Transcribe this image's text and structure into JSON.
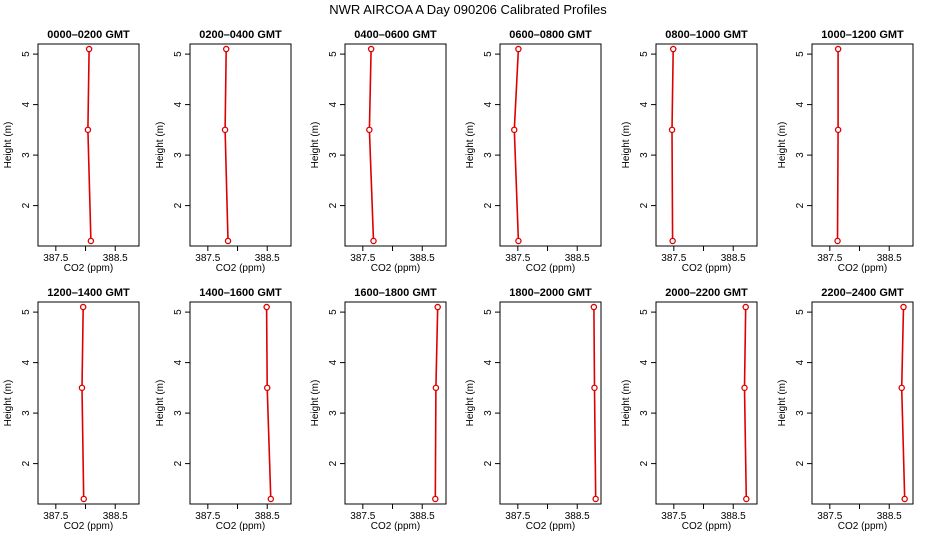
{
  "title": "NWR AIRCOA A  Day 090206  Calibrated Profiles",
  "chart_data": [
    {
      "type": "line",
      "title": "0000–0200 GMT",
      "xlabel": "CO2 (ppm)",
      "ylabel": "Height (m)",
      "x_ticks": [
        "387.5",
        "388.5"
      ],
      "y_ticks": [
        "2",
        "3",
        "4",
        "5"
      ],
      "xlim": [
        387.2,
        388.9
      ],
      "ylim": [
        1.2,
        5.2
      ],
      "points": [
        {
          "x": 388.06,
          "y": 5.1
        },
        {
          "x": 388.04,
          "y": 3.5
        },
        {
          "x": 388.09,
          "y": 1.3
        }
      ],
      "color": "#dd0000"
    },
    {
      "type": "line",
      "title": "0200–0400 GMT",
      "xlabel": "CO2 (ppm)",
      "ylabel": "Height (m)",
      "x_ticks": [
        "387.5",
        "388.5"
      ],
      "y_ticks": [
        "2",
        "3",
        "4",
        "5"
      ],
      "xlim": [
        387.2,
        388.9
      ],
      "ylim": [
        1.2,
        5.2
      ],
      "points": [
        {
          "x": 387.81,
          "y": 5.1
        },
        {
          "x": 387.79,
          "y": 3.5
        },
        {
          "x": 387.84,
          "y": 1.3
        }
      ],
      "color": "#dd0000"
    },
    {
      "type": "line",
      "title": "0400–0600 GMT",
      "xlabel": "CO2 (ppm)",
      "ylabel": "Height (m)",
      "x_ticks": [
        "387.5",
        "388.5"
      ],
      "y_ticks": [
        "2",
        "3",
        "4",
        "5"
      ],
      "xlim": [
        387.2,
        388.9
      ],
      "ylim": [
        1.2,
        5.2
      ],
      "points": [
        {
          "x": 387.64,
          "y": 5.1
        },
        {
          "x": 387.61,
          "y": 3.5
        },
        {
          "x": 387.68,
          "y": 1.3
        }
      ],
      "color": "#dd0000"
    },
    {
      "type": "line",
      "title": "0600–0800 GMT",
      "xlabel": "CO2 (ppm)",
      "ylabel": "Height (m)",
      "x_ticks": [
        "387.5",
        "388.5"
      ],
      "y_ticks": [
        "2",
        "3",
        "4",
        "5"
      ],
      "xlim": [
        387.2,
        388.9
      ],
      "ylim": [
        1.2,
        5.2
      ],
      "points": [
        {
          "x": 387.51,
          "y": 5.1
        },
        {
          "x": 387.44,
          "y": 3.5
        },
        {
          "x": 387.51,
          "y": 1.3
        }
      ],
      "color": "#dd0000"
    },
    {
      "type": "line",
      "title": "0800–1000 GMT",
      "xlabel": "CO2 (ppm)",
      "ylabel": "Height (m)",
      "x_ticks": [
        "387.5",
        "388.5"
      ],
      "y_ticks": [
        "2",
        "3",
        "4",
        "5"
      ],
      "xlim": [
        387.2,
        388.9
      ],
      "ylim": [
        1.2,
        5.2
      ],
      "points": [
        {
          "x": 387.49,
          "y": 5.1
        },
        {
          "x": 387.47,
          "y": 3.5
        },
        {
          "x": 387.48,
          "y": 1.3
        }
      ],
      "color": "#dd0000"
    },
    {
      "type": "line",
      "title": "1000–1200 GMT",
      "xlabel": "CO2 (ppm)",
      "ylabel": "Height (m)",
      "x_ticks": [
        "387.5",
        "388.5"
      ],
      "y_ticks": [
        "2",
        "3",
        "4",
        "5"
      ],
      "xlim": [
        387.2,
        388.9
      ],
      "ylim": [
        1.2,
        5.2
      ],
      "points": [
        {
          "x": 387.64,
          "y": 5.1
        },
        {
          "x": 387.64,
          "y": 3.5
        },
        {
          "x": 387.63,
          "y": 1.3
        }
      ],
      "color": "#dd0000"
    },
    {
      "type": "line",
      "title": "1200–1400 GMT",
      "xlabel": "CO2 (ppm)",
      "ylabel": "Height (m)",
      "x_ticks": [
        "387.5",
        "388.5"
      ],
      "y_ticks": [
        "2",
        "3",
        "4",
        "5"
      ],
      "xlim": [
        387.2,
        388.9
      ],
      "ylim": [
        1.2,
        5.2
      ],
      "points": [
        {
          "x": 387.96,
          "y": 5.1
        },
        {
          "x": 387.94,
          "y": 3.5
        },
        {
          "x": 387.97,
          "y": 1.3
        }
      ],
      "color": "#dd0000"
    },
    {
      "type": "line",
      "title": "1400–1600 GMT",
      "xlabel": "CO2 (ppm)",
      "ylabel": "Height (m)",
      "x_ticks": [
        "387.5",
        "388.5"
      ],
      "y_ticks": [
        "2",
        "3",
        "4",
        "5"
      ],
      "xlim": [
        387.2,
        388.9
      ],
      "ylim": [
        1.2,
        5.2
      ],
      "points": [
        {
          "x": 388.49,
          "y": 5.1
        },
        {
          "x": 388.5,
          "y": 3.5
        },
        {
          "x": 388.56,
          "y": 1.3
        }
      ],
      "color": "#dd0000"
    },
    {
      "type": "line",
      "title": "1600–1800 GMT",
      "xlabel": "CO2 (ppm)",
      "ylabel": "Height (m)",
      "x_ticks": [
        "387.5",
        "388.5"
      ],
      "y_ticks": [
        "2",
        "3",
        "4",
        "5"
      ],
      "xlim": [
        387.2,
        388.9
      ],
      "ylim": [
        1.2,
        5.2
      ],
      "points": [
        {
          "x": 388.76,
          "y": 5.1
        },
        {
          "x": 388.73,
          "y": 3.5
        },
        {
          "x": 388.72,
          "y": 1.3
        }
      ],
      "color": "#dd0000"
    },
    {
      "type": "line",
      "title": "1800–2000 GMT",
      "xlabel": "CO2 (ppm)",
      "ylabel": "Height (m)",
      "x_ticks": [
        "387.5",
        "388.5"
      ],
      "y_ticks": [
        "2",
        "3",
        "4",
        "5"
      ],
      "xlim": [
        387.2,
        388.9
      ],
      "ylim": [
        1.2,
        5.2
      ],
      "points": [
        {
          "x": 388.78,
          "y": 5.1
        },
        {
          "x": 388.79,
          "y": 3.5
        },
        {
          "x": 388.81,
          "y": 1.3
        }
      ],
      "color": "#dd0000"
    },
    {
      "type": "line",
      "title": "2000–2200 GMT",
      "xlabel": "CO2 (ppm)",
      "ylabel": "Height (m)",
      "x_ticks": [
        "387.5",
        "388.5"
      ],
      "y_ticks": [
        "2",
        "3",
        "4",
        "5"
      ],
      "xlim": [
        387.2,
        388.9
      ],
      "ylim": [
        1.2,
        5.2
      ],
      "points": [
        {
          "x": 388.71,
          "y": 5.1
        },
        {
          "x": 388.69,
          "y": 3.5
        },
        {
          "x": 388.72,
          "y": 1.3
        }
      ],
      "color": "#dd0000"
    },
    {
      "type": "line",
      "title": "2200–2400 GMT",
      "xlabel": "CO2 (ppm)",
      "ylabel": "Height (m)",
      "x_ticks": [
        "387.5",
        "388.5"
      ],
      "y_ticks": [
        "2",
        "3",
        "4",
        "5"
      ],
      "xlim": [
        387.2,
        388.9
      ],
      "ylim": [
        1.2,
        5.2
      ],
      "points": [
        {
          "x": 388.74,
          "y": 5.1
        },
        {
          "x": 388.71,
          "y": 3.5
        },
        {
          "x": 388.76,
          "y": 1.3
        }
      ],
      "color": "#dd0000"
    }
  ]
}
